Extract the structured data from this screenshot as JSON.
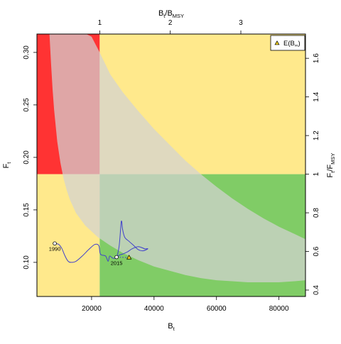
{
  "chart_data": {
    "type": "line",
    "title": "",
    "xlabel": "B",
    "xlabel_sub": "t",
    "ylabel": "F",
    "ylabel_sub": "t",
    "top_axis_label": {
      "num": "B",
      "num_sub": "t",
      "den": "B",
      "den_sub": "MSY"
    },
    "right_axis_label": {
      "num": "F",
      "num_sub": "t",
      "den": "F",
      "den_sub": "MSY"
    },
    "xlim": [
      2500,
      88500
    ],
    "ylim": [
      0.0675,
      0.3175
    ],
    "x_ticks": [
      20000,
      40000,
      60000,
      80000
    ],
    "x_tick_labels": [
      "20000",
      "40000",
      "60000",
      "80000"
    ],
    "y_ticks": [
      0.1,
      0.15,
      0.2,
      0.25,
      0.3
    ],
    "y_tick_labels": [
      "0.10",
      "0.15",
      "0.20",
      "0.25",
      "0.30"
    ],
    "top_ticks_ratio": [
      1,
      2,
      3
    ],
    "top_tick_labels": [
      "1",
      "2",
      "3"
    ],
    "right_ticks_ratio": [
      0.4,
      0.6,
      0.8,
      1.0,
      1.2,
      1.4,
      1.6
    ],
    "right_tick_labels": [
      "0.4",
      "0.6",
      "0.8",
      "1",
      "1.2",
      "1.4",
      "1.6"
    ],
    "Bmsy": 22600,
    "Fmsy": 0.184,
    "zone_colors": {
      "red": "#ff3333",
      "yellow": "#ffe98c",
      "green": "#80cc66",
      "band": "#d3d3d3",
      "trajectory": "#4040cc"
    },
    "confidence_band": {
      "upper": [
        [
          6000,
          0.318
        ],
        [
          15000,
          0.318
        ],
        [
          18000,
          0.318
        ],
        [
          20000,
          0.315
        ],
        [
          22600,
          0.3
        ],
        [
          26000,
          0.279
        ],
        [
          30000,
          0.262
        ],
        [
          35000,
          0.244
        ],
        [
          40000,
          0.227
        ],
        [
          45000,
          0.212
        ],
        [
          50000,
          0.197
        ],
        [
          55000,
          0.184
        ],
        [
          60000,
          0.172
        ],
        [
          65000,
          0.161
        ],
        [
          70000,
          0.151
        ],
        [
          75000,
          0.142
        ],
        [
          80000,
          0.134
        ],
        [
          85000,
          0.127
        ],
        [
          88500,
          0.122
        ]
      ],
      "lower": [
        [
          6500,
          0.318
        ],
        [
          7000,
          0.29
        ],
        [
          7500,
          0.265
        ],
        [
          8000,
          0.245
        ],
        [
          9000,
          0.215
        ],
        [
          10000,
          0.195
        ],
        [
          11000,
          0.18
        ],
        [
          12000,
          0.169
        ],
        [
          13000,
          0.16
        ],
        [
          15000,
          0.147
        ],
        [
          18000,
          0.135
        ],
        [
          22000,
          0.124
        ],
        [
          26000,
          0.116
        ],
        [
          30000,
          0.109
        ],
        [
          35000,
          0.102
        ],
        [
          40000,
          0.096
        ],
        [
          45000,
          0.092
        ],
        [
          50000,
          0.088
        ],
        [
          55000,
          0.085
        ],
        [
          60000,
          0.083
        ],
        [
          65000,
          0.082
        ],
        [
          70000,
          0.081
        ],
        [
          75000,
          0.081
        ],
        [
          80000,
          0.081
        ],
        [
          85000,
          0.082
        ],
        [
          88500,
          0.083
        ]
      ]
    },
    "series": [
      {
        "x": [
          8200,
          9500,
          10500,
          11500,
          12500,
          13500,
          15000,
          17000,
          19000,
          21000,
          22300,
          22700,
          23200,
          24500,
          25300,
          25800,
          26800,
          28000,
          28800,
          29300,
          29500,
          29700,
          29900,
          30600,
          32000,
          33500,
          35000,
          36500,
          38000,
          37000,
          35000,
          33000,
          31500,
          30000,
          29000,
          28000
        ],
        "y": [
          0.118,
          0.117,
          0.113,
          0.106,
          0.101,
          0.1,
          0.101,
          0.106,
          0.112,
          0.117,
          0.116,
          0.109,
          0.107,
          0.106,
          0.101,
          0.106,
          0.104,
          0.105,
          0.115,
          0.132,
          0.139,
          0.138,
          0.132,
          0.124,
          0.12,
          0.116,
          0.112,
          0.111,
          0.113,
          0.113,
          0.115,
          0.113,
          0.11,
          0.108,
          0.107,
          0.105
        ]
      }
    ],
    "annotations": [
      {
        "text": "1990",
        "x": 8200,
        "y": 0.118
      },
      {
        "text": "2015",
        "x": 28000,
        "y": 0.105
      }
    ],
    "projection": {
      "x": 32000,
      "y": 0.1045,
      "legend_label": "E(B",
      "legend_sub": "∞",
      "legend_close": ")"
    },
    "legend_position": "top-right"
  }
}
